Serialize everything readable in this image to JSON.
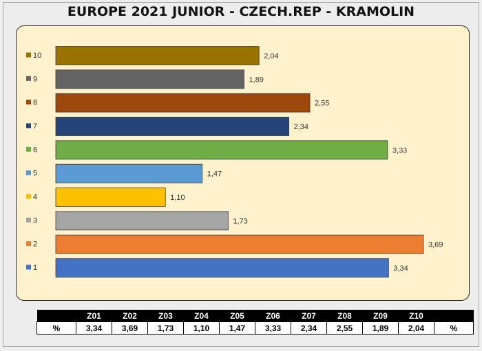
{
  "title": "EUROPE 2021 JUNIOR - CZECH.REP  - KRAMOLIN",
  "chart_data": {
    "type": "bar",
    "orientation": "horizontal",
    "title": "EUROPE 2021 JUNIOR - CZECH.REP  - KRAMOLIN",
    "xlabel": "",
    "ylabel": "",
    "categories": [
      "1",
      "2",
      "3",
      "4",
      "5",
      "6",
      "7",
      "8",
      "9",
      "10"
    ],
    "values": [
      3.34,
      3.69,
      1.73,
      1.1,
      1.47,
      3.33,
      2.34,
      2.55,
      1.89,
      2.04
    ],
    "value_labels": [
      "3,34",
      "3,69",
      "1,73",
      "1,10",
      "1,47",
      "3,33",
      "2,34",
      "2,55",
      "1,89",
      "2,04"
    ],
    "colors": [
      "#4472c4",
      "#ed7d31",
      "#a5a5a5",
      "#ffc000",
      "#5b9bd5",
      "#70ad47",
      "#264478",
      "#9e480e",
      "#636363",
      "#997300"
    ],
    "xlim": [
      0,
      3.69
    ],
    "grid": false,
    "legend": "left"
  },
  "table": {
    "header": [
      "",
      "Z01",
      "Z02",
      "Z03",
      "Z04",
      "Z05",
      "Z06",
      "Z07",
      "Z08",
      "Z09",
      "Z10",
      ""
    ],
    "row": [
      "%",
      "3,34",
      "3,69",
      "1,73",
      "1,10",
      "1,47",
      "3,33",
      "2,34",
      "2,55",
      "1,89",
      "2,04",
      "%"
    ]
  }
}
